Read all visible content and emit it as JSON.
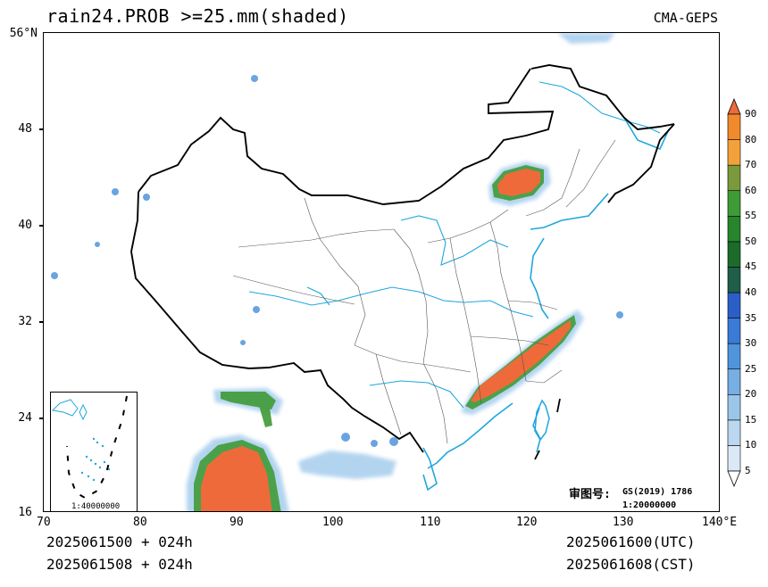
{
  "header": {
    "title": "rain24.PROB >=25.mm(shaded)",
    "source": "CMA-GEPS"
  },
  "axes": {
    "lat_labels": [
      "56°N",
      "48",
      "40",
      "32",
      "24",
      "16"
    ],
    "lon_labels": [
      "70",
      "80",
      "90",
      "100",
      "110",
      "120",
      "130",
      "140°E"
    ]
  },
  "footer": {
    "init_utc": "2025061500 + 024h",
    "init_cst": "2025061508 + 024h",
    "valid_utc": "2025061600(UTC)",
    "valid_cst": "2025061608(CST)"
  },
  "map_notes": {
    "review_label": "审图号:",
    "review_code": "GS(2019) 1786",
    "scale": "1:20000000",
    "inset_scale": "1:40000000"
  },
  "colorbar": {
    "levels": [
      "5",
      "10",
      "15",
      "20",
      "25",
      "30",
      "35",
      "40",
      "45",
      "50",
      "55",
      "60",
      "70",
      "80",
      "90"
    ],
    "colors": [
      "#ffffff",
      "#dbe9f6",
      "#bcd7f0",
      "#9ac6ea",
      "#75afe3",
      "#4f95dc",
      "#3b7ad6",
      "#2a5fc8",
      "#1f5e49",
      "#1c6b2a",
      "#28852c",
      "#3f9b36",
      "#7a9a3d",
      "#f3a23b",
      "#f08a2c",
      "#ee6a3a"
    ]
  }
}
